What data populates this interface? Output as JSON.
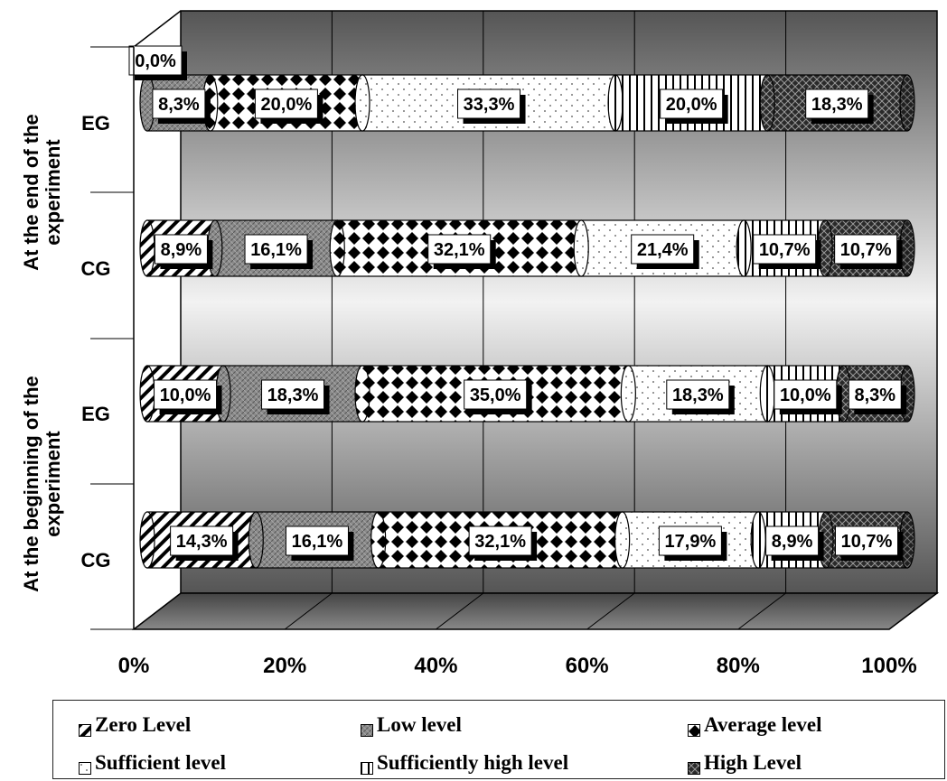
{
  "chart_data": {
    "type": "bar",
    "stacked": "100%",
    "orientation": "horizontal",
    "group_labels": [
      "At the end of the experiment",
      "At the beginning of the experiment"
    ],
    "categories": [
      "EG",
      "CG",
      "EG",
      "CG"
    ],
    "category_groups": [
      0,
      0,
      1,
      1
    ],
    "series": [
      {
        "name": "Zero Level",
        "values": [
          0.0,
          8.9,
          10.0,
          14.3
        ],
        "labels": [
          "0,0%",
          "8,9%",
          "10,0%",
          "14,3%"
        ]
      },
      {
        "name": "Low level",
        "values": [
          8.3,
          16.1,
          18.3,
          16.1
        ],
        "labels": [
          "8,3%",
          "16,1%",
          "18,3%",
          "16,1%"
        ]
      },
      {
        "name": "Average level",
        "values": [
          20.0,
          32.1,
          35.0,
          32.1
        ],
        "labels": [
          "20,0%",
          "32,1%",
          "35,0%",
          "32,1%"
        ]
      },
      {
        "name": "Sufficient level",
        "values": [
          33.3,
          21.4,
          18.3,
          17.9
        ],
        "labels": [
          "33,3%",
          "21,4%",
          "18,3%",
          "17,9%"
        ]
      },
      {
        "name": "Sufficiently high level",
        "values": [
          20.0,
          10.7,
          10.0,
          8.9
        ],
        "labels": [
          "20,0%",
          "10,7%",
          "10,0%",
          "8,9%"
        ]
      },
      {
        "name": "High Level",
        "values": [
          18.3,
          10.7,
          8.3,
          10.7
        ],
        "labels": [
          "18,3%",
          "10,7%",
          "8,3%",
          "10,7%"
        ]
      }
    ],
    "x_ticks": [
      "0%",
      "20%",
      "40%",
      "60%",
      "80%",
      "100%"
    ],
    "xlim": [
      0,
      100
    ],
    "legend_position": "bottom",
    "grid": true
  },
  "colors": {
    "wall_dark": "#555555",
    "wall_light": "#e8e8e8",
    "floor": "#6a6a6a",
    "border": "#000000"
  }
}
